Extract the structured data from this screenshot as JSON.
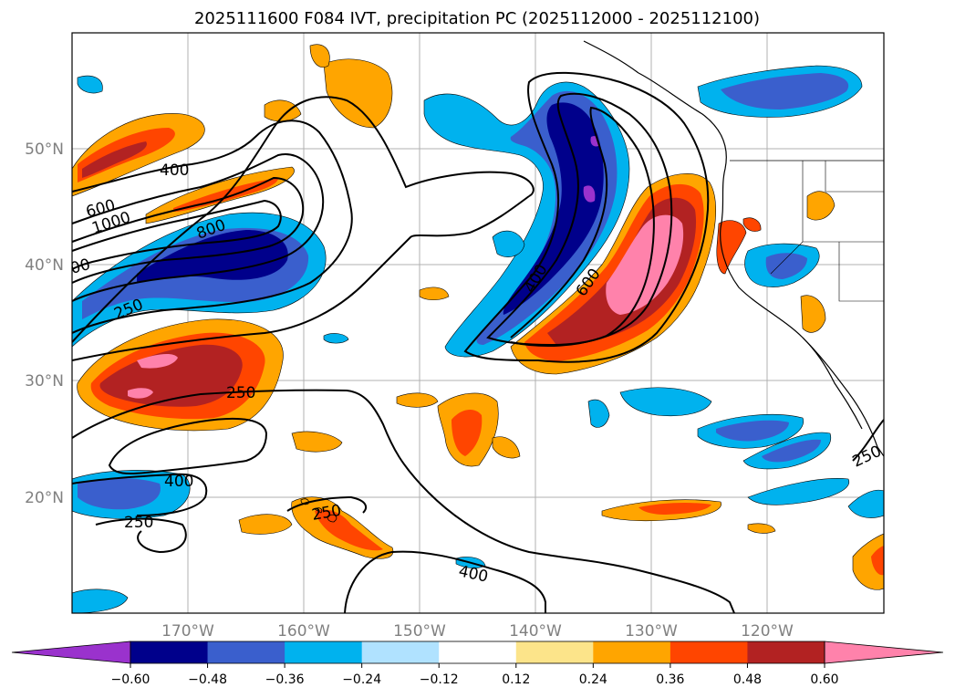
{
  "title": "2025111600 F084 IVT, precipitation PC (2025112000 - 2025112100)",
  "lat_labels": [
    "50°N",
    "40°N",
    "30°N",
    "20°N"
  ],
  "lon_labels": [
    "170°W",
    "160°W",
    "150°W",
    "140°W",
    "130°W",
    "120°W"
  ],
  "colorbar": {
    "colors": [
      "#9a32cd",
      "#00008b",
      "#3a5fcd",
      "#00b2ee",
      "#b0e2ff",
      "#ffffff",
      "#fce48a",
      "#ffa500",
      "#ff4500",
      "#b22222",
      "#ff82ab"
    ],
    "tick_labels": [
      "−0.60",
      "−0.48",
      "−0.36",
      "−0.24",
      "−0.12",
      "0.12",
      "0.24",
      "0.36",
      "0.48",
      "0.60"
    ]
  },
  "map_extent": {
    "lon_min": -180,
    "lon_max": -110,
    "lat_min": 10,
    "lat_max": 60
  },
  "contour_labels": [
    "400",
    "600",
    "1000",
    "800",
    "00",
    "250",
    "400",
    "600",
    "250",
    "400",
    "250",
    "250",
    "400",
    "250"
  ]
}
